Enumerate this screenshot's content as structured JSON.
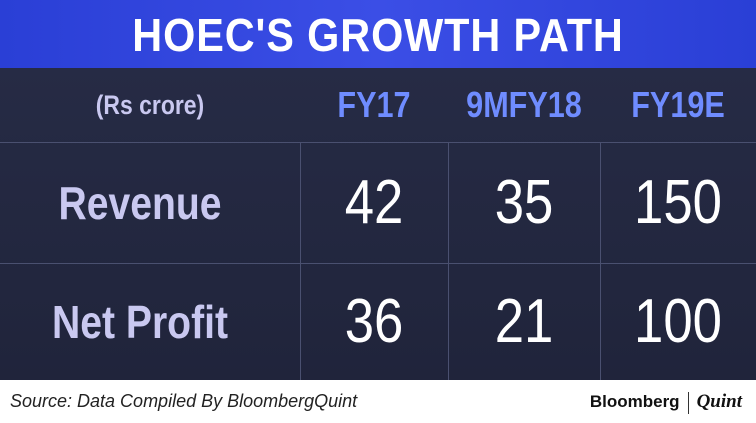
{
  "header": {
    "title": "HOEC'S GROWTH PATH"
  },
  "table": {
    "unit_label": "(Rs crore)",
    "columns": [
      "FY17",
      "9MFY18",
      "FY19E"
    ],
    "rows": [
      [
        "Revenue",
        42,
        35,
        150
      ],
      [
        "Net Profit",
        36,
        21,
        100
      ]
    ]
  },
  "footer": {
    "source": "Source: Data Compiled By BloombergQuint",
    "brand": [
      "Bloomberg",
      "Quint"
    ]
  }
}
